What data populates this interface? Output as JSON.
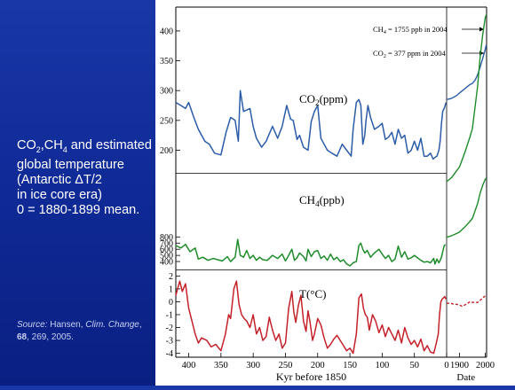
{
  "left_text": {
    "line1_a": "CO",
    "line1_sub_a": "2",
    "line1_b": ",CH",
    "line1_sub_b": "4",
    "line1_c": " and estimated",
    "line2": "global temperature",
    "line3": "(Antarctic ΔT/2",
    "line4": "in ice core era)",
    "line5": "0 = 1880-1899 mean."
  },
  "source": {
    "label": "Source:",
    "authors": " Hansen, ",
    "journal": "Clim. Change",
    "sep1": ", ",
    "volume": "68",
    "rest": ", 269, 2005."
  },
  "chart_data": {
    "type": "line",
    "xlabel": "Kyr before 1850",
    "xlabel2": "Date",
    "x_ticks_kyr": [
      "400",
      "350",
      "300",
      "250",
      "200",
      "150",
      "100",
      "50",
      "0"
    ],
    "x_ticks_date": [
      "1900",
      "2000"
    ],
    "panels": [
      {
        "name": "CO2",
        "label_main": "CO",
        "label_sub": "2",
        "label_unit": "(ppm)",
        "color": "#2b5ca8",
        "ylim": [
          165,
          440
        ],
        "yticks": [
          "200",
          "250",
          "300",
          "350",
          "400"
        ],
        "ice_kyr": [
          420,
          412,
          405,
          400,
          392,
          385,
          375,
          368,
          360,
          350,
          342,
          335,
          328,
          323,
          320,
          315,
          305,
          300,
          295,
          287,
          280,
          270,
          262,
          255,
          248,
          242,
          238,
          232,
          228,
          222,
          215,
          210,
          205,
          200,
          195,
          190,
          185,
          178,
          170,
          162,
          155,
          148,
          145,
          140,
          136,
          133,
          130,
          127,
          125,
          122,
          118,
          112,
          105,
          100,
          95,
          90,
          85,
          80,
          75,
          70,
          65,
          60,
          55,
          50,
          45,
          40,
          35,
          30,
          25,
          21,
          18,
          15,
          12,
          10,
          8,
          6,
          3,
          1
        ],
        "ice_vals": [
          280,
          275,
          270,
          280,
          255,
          235,
          215,
          210,
          195,
          192,
          230,
          255,
          250,
          215,
          300,
          265,
          270,
          240,
          220,
          205,
          215,
          240,
          220,
          240,
          275,
          252,
          250,
          218,
          225,
          205,
          200,
          248,
          265,
          275,
          220,
          210,
          200,
          195,
          190,
          210,
          200,
          190,
          235,
          280,
          285,
          275,
          210,
          225,
          250,
          275,
          255,
          235,
          240,
          245,
          218,
          222,
          230,
          210,
          235,
          220,
          225,
          195,
          200,
          215,
          200,
          220,
          190,
          190,
          195,
          185,
          188,
          190,
          200,
          215,
          245,
          265,
          272,
          280
        ],
        "modern_years": [
          1850,
          1870,
          1890,
          1900,
          1920,
          1940,
          1950,
          1960,
          1970,
          1980,
          1990,
          2000,
          2004
        ],
        "modern_vals": [
          285,
          287,
          292,
          296,
          303,
          310,
          312,
          317,
          326,
          339,
          354,
          369,
          377
        ],
        "annotation": "CO2 = 377 ppm in 2004",
        "ann_main": "CO",
        "ann_sub": "2",
        "ann_rest": " = 377 ppm in 2004"
      },
      {
        "name": "CH4",
        "label_main": "CH",
        "label_sub": "4",
        "label_unit": "(ppb)",
        "color": "#1f8c2b",
        "ylim": [
          300,
          1800
        ],
        "yticks": [
          "400",
          "500",
          "600",
          "700",
          "800"
        ],
        "ice_kyr": [
          420,
          412,
          405,
          398,
          390,
          385,
          378,
          370,
          362,
          355,
          348,
          340,
          335,
          328,
          324,
          320,
          315,
          310,
          305,
          300,
          295,
          290,
          285,
          278,
          270,
          262,
          255,
          250,
          245,
          240,
          236,
          232,
          228,
          222,
          218,
          215,
          210,
          205,
          200,
          195,
          190,
          185,
          180,
          175,
          170,
          165,
          160,
          155,
          150,
          145,
          140,
          136,
          133,
          130,
          127,
          123,
          118,
          112,
          105,
          100,
          95,
          90,
          85,
          80,
          75,
          70,
          65,
          60,
          55,
          50,
          45,
          40,
          35,
          30,
          25,
          20,
          18,
          15,
          12,
          10,
          8,
          6,
          4,
          2
        ],
        "ice_vals": [
          660,
          620,
          680,
          560,
          620,
          440,
          470,
          420,
          450,
          430,
          410,
          480,
          400,
          470,
          760,
          500,
          470,
          580,
          450,
          500,
          420,
          470,
          430,
          420,
          500,
          450,
          520,
          410,
          500,
          600,
          420,
          460,
          540,
          480,
          410,
          600,
          480,
          560,
          580,
          450,
          490,
          420,
          520,
          430,
          470,
          400,
          430,
          360,
          330,
          380,
          400,
          660,
          700,
          600,
          540,
          580,
          470,
          540,
          600,
          520,
          450,
          500,
          400,
          440,
          650,
          470,
          560,
          440,
          460,
          500,
          460,
          420,
          390,
          400,
          380,
          450,
          360,
          440,
          380,
          420,
          470,
          560,
          650,
          680
        ],
        "modern_years": [
          1850,
          1870,
          1890,
          1900,
          1920,
          1940,
          1950,
          1960,
          1970,
          1980,
          1990,
          2000,
          2004
        ],
        "modern_vals": [
          795,
          820,
          860,
          880,
          960,
          1050,
          1100,
          1220,
          1340,
          1510,
          1640,
          1740,
          1755
        ],
        "annotation": "CH4 = 1755 ppb in 2004",
        "ann_main": "CH",
        "ann_sub": "4",
        "ann_rest": " = 1755 ppb in 2004"
      },
      {
        "name": "T",
        "label_main": "T(°C)",
        "color": "#c4212a",
        "ylim": [
          -4.3,
          2.3
        ],
        "yticks": [
          "-4",
          "-3",
          "-2",
          "-1",
          "0",
          "1",
          "2"
        ],
        "ice_kyr": [
          420,
          414,
          410,
          405,
          400,
          395,
          390,
          385,
          380,
          372,
          365,
          358,
          350,
          343,
          338,
          335,
          330,
          326,
          322,
          318,
          314,
          310,
          305,
          300,
          295,
          290,
          285,
          280,
          275,
          270,
          265,
          260,
          255,
          250,
          245,
          240,
          237,
          234,
          230,
          226,
          222,
          218,
          215,
          212,
          208,
          205,
          200,
          195,
          190,
          185,
          180,
          175,
          170,
          165,
          160,
          155,
          150,
          145,
          140,
          136,
          132,
          129,
          126,
          123,
          120,
          115,
          110,
          105,
          100,
          95,
          90,
          85,
          80,
          75,
          70,
          65,
          60,
          55,
          50,
          45,
          40,
          35,
          30,
          25,
          20,
          16,
          13,
          11,
          9,
          7,
          5,
          3,
          1
        ],
        "ice_vals": [
          0.5,
          1.6,
          0.8,
          1.4,
          -0.5,
          -1.5,
          -2.5,
          -3.2,
          -2.8,
          -3.0,
          -3.5,
          -3.3,
          -3.8,
          -2.5,
          -1.0,
          -1.3,
          1.0,
          1.6,
          -0.2,
          -1.0,
          -1.3,
          -1.5,
          -2.0,
          -1.0,
          -2.5,
          -2.0,
          -3.0,
          -2.7,
          -1.2,
          -2.2,
          -3.0,
          -2.5,
          -3.6,
          -3.2,
          -0.5,
          0.8,
          -0.8,
          -1.6,
          -0.3,
          0.5,
          -1.5,
          -2.3,
          -0.7,
          -1.5,
          -3.0,
          -2.5,
          -1.3,
          -1.8,
          -2.8,
          -3.6,
          -3.3,
          -2.9,
          -2.6,
          -3.0,
          -3.4,
          -3.8,
          -3.6,
          -4.0,
          -2.5,
          0.3,
          0.6,
          -0.5,
          -1.0,
          -1.2,
          -2.2,
          -1.0,
          -1.5,
          -2.4,
          -1.8,
          -2.7,
          -2.0,
          -2.5,
          -3.0,
          -2.2,
          -3.2,
          -2.0,
          -2.8,
          -3.3,
          -3.0,
          -3.5,
          -2.9,
          -3.8,
          -3.4,
          -3.9,
          -4.0,
          -3.2,
          -2.5,
          -1.0,
          0.0,
          0.2,
          0.3,
          0.4,
          0.2
        ],
        "modern_years": [
          1850,
          1870,
          1890,
          1900,
          1910,
          1920,
          1930,
          1940,
          1950,
          1960,
          1970,
          1980,
          1990,
          2000,
          2005
        ],
        "modern_vals": [
          -0.1,
          -0.15,
          -0.2,
          -0.25,
          -0.35,
          -0.25,
          -0.15,
          0.0,
          -0.05,
          -0.05,
          -0.05,
          0.1,
          0.3,
          0.45,
          0.55
        ]
      }
    ]
  }
}
